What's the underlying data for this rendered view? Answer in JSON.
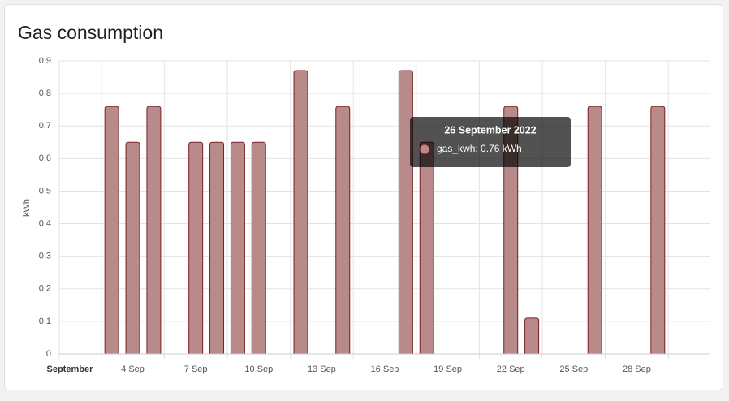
{
  "card_title": "Gas consumption",
  "chart_data": {
    "type": "bar",
    "ylabel": "kWh",
    "x": [
      3,
      4,
      5,
      7,
      8,
      9,
      10,
      12,
      14,
      17,
      18,
      22,
      23,
      26,
      29
    ],
    "values": [
      0.76,
      0.65,
      0.76,
      0.65,
      0.65,
      0.65,
      0.65,
      0.87,
      0.76,
      0.87,
      0.65,
      0.76,
      0.11,
      0.76,
      0.76
    ],
    "color": "#b98a8a",
    "edge_color": "#7a1f24",
    "xlim": [
      0.5,
      31.5
    ],
    "xticks": [
      {
        "value": 1,
        "label": "September"
      },
      {
        "value": 4,
        "label": "4 Sep"
      },
      {
        "value": 7,
        "label": "7 Sep"
      },
      {
        "value": 10,
        "label": "10 Sep"
      },
      {
        "value": 13,
        "label": "13 Sep"
      },
      {
        "value": 16,
        "label": "16 Sep"
      },
      {
        "value": 19,
        "label": "19 Sep"
      },
      {
        "value": 22,
        "label": "22 Sep"
      },
      {
        "value": 25,
        "label": "25 Sep"
      },
      {
        "value": 28,
        "label": "28 Sep"
      }
    ],
    "ylim": [
      0,
      0.9
    ],
    "yticks": [
      0,
      0.1,
      0.2,
      0.3,
      0.4,
      0.5,
      0.6,
      0.7,
      0.8,
      0.9
    ],
    "grid": true,
    "tooltip": {
      "title": "26 September 2022",
      "label": "gas_kwh: 0.76 kWh"
    }
  }
}
